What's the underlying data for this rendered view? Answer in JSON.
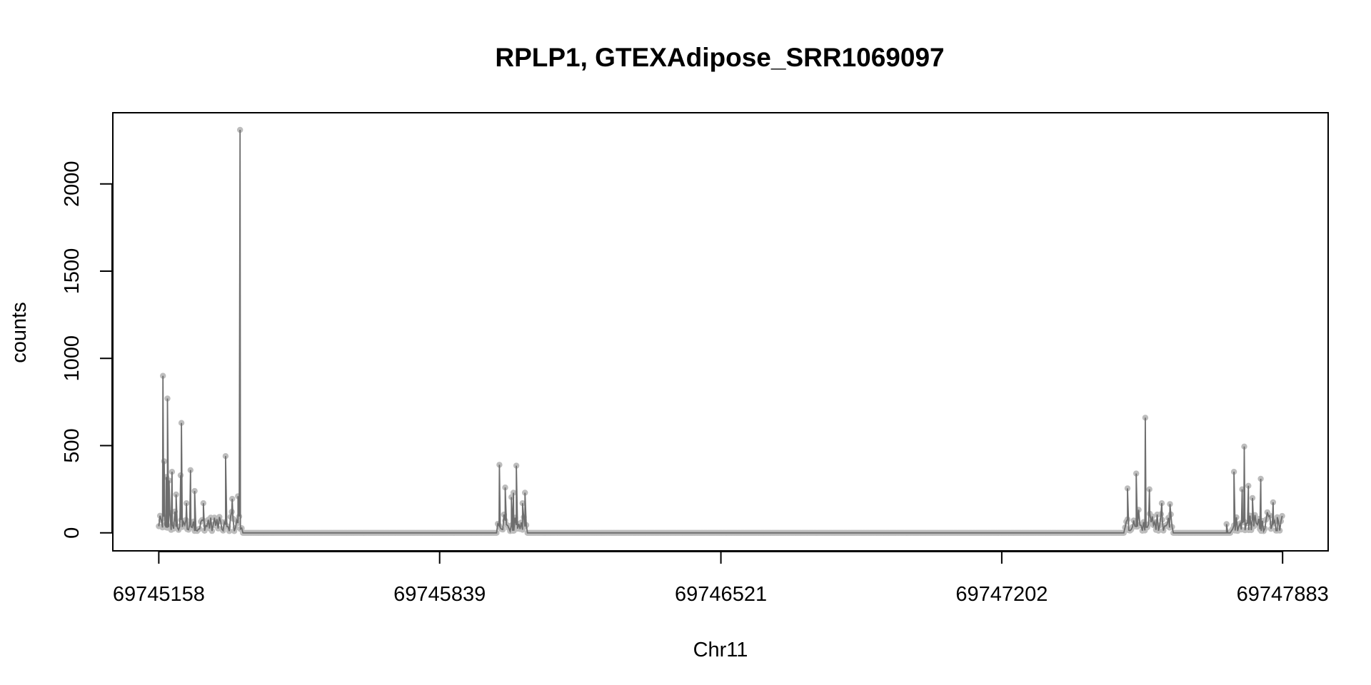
{
  "chart_data": {
    "type": "line",
    "title": "RPLP1, GTEXAdipose_SRR1069097",
    "xlabel": "Chr11",
    "ylabel": "counts",
    "x_ticks": [
      69745158,
      69745839,
      69746521,
      69747202,
      69747883
    ],
    "x_tick_labels": [
      "69745158",
      "69745839",
      "69746521",
      "69747202",
      "69747883"
    ],
    "y_ticks": [
      0,
      500,
      1000,
      1500,
      2000
    ],
    "y_tick_labels": [
      "0",
      "500",
      "1000",
      "1500",
      "2000"
    ],
    "xlim": [
      69745050,
      69747990
    ],
    "ylim": [
      -95,
      2400
    ],
    "grid": false,
    "legend": "none",
    "colors": {
      "line": "#6e6e6e",
      "points": "#bdbdbd",
      "frame": "#000000"
    },
    "peaks": [
      [
        69745168,
        900
      ],
      [
        69745171,
        410
      ],
      [
        69745176,
        320
      ],
      [
        69745179,
        770
      ],
      [
        69745183,
        300
      ],
      [
        69745190,
        350
      ],
      [
        69745200,
        220
      ],
      [
        69745213,
        630
      ],
      [
        69745211,
        330
      ],
      [
        69745225,
        170
      ],
      [
        69745235,
        360
      ],
      [
        69745245,
        240
      ],
      [
        69745266,
        170
      ],
      [
        69745320,
        440
      ],
      [
        69745336,
        195
      ],
      [
        69745355,
        2310
      ],
      [
        69745350,
        210
      ],
      [
        69745984,
        390
      ],
      [
        69745998,
        260
      ],
      [
        69746013,
        205
      ],
      [
        69746018,
        230
      ],
      [
        69746025,
        385
      ],
      [
        69746040,
        170
      ],
      [
        69746046,
        230
      ],
      [
        69747507,
        255
      ],
      [
        69747528,
        340
      ],
      [
        69747550,
        660
      ],
      [
        69747560,
        250
      ],
      [
        69747590,
        170
      ],
      [
        69747610,
        165
      ],
      [
        69747747,
        50
      ],
      [
        69747765,
        350
      ],
      [
        69747785,
        250
      ],
      [
        69747790,
        495
      ],
      [
        69747800,
        270
      ],
      [
        69747810,
        200
      ],
      [
        69747830,
        310
      ],
      [
        69747860,
        175
      ],
      [
        69747870,
        90
      ]
    ],
    "active_ranges": [
      [
        69745158,
        69745360
      ],
      [
        69745980,
        69746050
      ],
      [
        69747500,
        69747615
      ],
      [
        69747758,
        69747883
      ]
    ],
    "baseline_range": [
      69745158,
      69747883
    ]
  }
}
